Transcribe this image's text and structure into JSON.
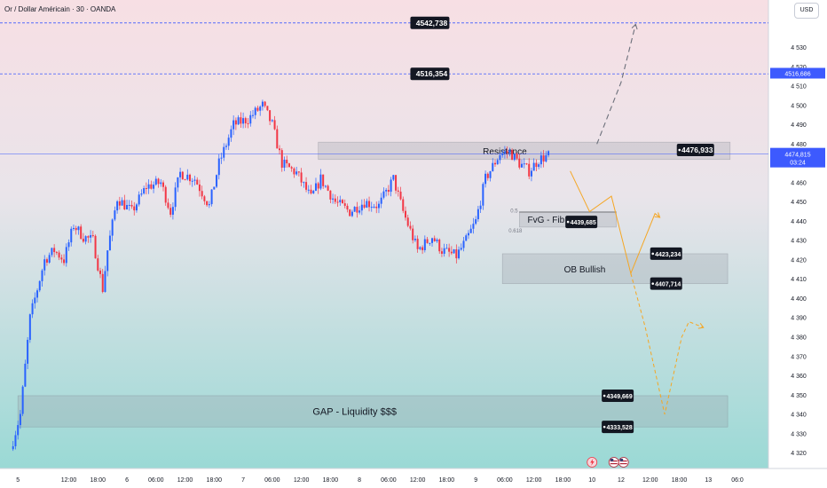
{
  "header": {
    "title": "Or / Dollar Américain · 30 · OANDA"
  },
  "currency_button": "USD",
  "colors": {
    "bull": "#2962ff",
    "bear": "#f23645",
    "projection": "#f5a623",
    "bg_top": "#f7dfe4",
    "bg_bottom": "#9ad9d5"
  },
  "chart_data": {
    "type": "candlestick",
    "instrument": "Or / Dollar Américain",
    "timeframe": "30",
    "source": "OANDA",
    "currency": "USD",
    "ylim": [
      4312,
      4550
    ],
    "y_ticks": [
      4320,
      4330,
      4340,
      4350,
      4360,
      4370,
      4380,
      4390,
      4400,
      4410,
      4420,
      4430,
      4440,
      4450,
      4460,
      4470,
      4480,
      4490,
      4500,
      4510,
      4520,
      4530
    ],
    "x_ticks": [
      {
        "label": "5",
        "i": 3
      },
      {
        "label": "12:00",
        "i": 24
      },
      {
        "label": "18:00",
        "i": 36
      },
      {
        "label": "6",
        "i": 48
      },
      {
        "label": "06:00",
        "i": 60
      },
      {
        "label": "12:00",
        "i": 72
      },
      {
        "label": "18:00",
        "i": 84
      },
      {
        "label": "7",
        "i": 96
      },
      {
        "label": "06:00",
        "i": 108
      },
      {
        "label": "12:00",
        "i": 120
      },
      {
        "label": "18:00",
        "i": 132
      },
      {
        "label": "8",
        "i": 144
      },
      {
        "label": "06:00",
        "i": 156
      },
      {
        "label": "12:00",
        "i": 168
      },
      {
        "label": "18:00",
        "i": 180
      },
      {
        "label": "9",
        "i": 192
      },
      {
        "label": "06:00",
        "i": 204
      },
      {
        "label": "12:00",
        "i": 216
      },
      {
        "label": "18:00",
        "i": 228
      },
      {
        "label": "10",
        "i": 240
      },
      {
        "label": "12",
        "i": 252
      },
      {
        "label": "12:00",
        "i": 264
      },
      {
        "label": "18:00",
        "i": 276
      },
      {
        "label": "13",
        "i": 288
      },
      {
        "label": "06:0",
        "i": 300
      }
    ],
    "series_anchors": [
      {
        "i": 0,
        "v": 4322
      },
      {
        "i": 4,
        "v": 4340
      },
      {
        "i": 8,
        "v": 4390
      },
      {
        "i": 14,
        "v": 4420
      },
      {
        "i": 18,
        "v": 4425
      },
      {
        "i": 22,
        "v": 4420
      },
      {
        "i": 26,
        "v": 4438
      },
      {
        "i": 30,
        "v": 4432
      },
      {
        "i": 34,
        "v": 4430
      },
      {
        "i": 38,
        "v": 4405
      },
      {
        "i": 40,
        "v": 4425
      },
      {
        "i": 44,
        "v": 4452
      },
      {
        "i": 50,
        "v": 4445
      },
      {
        "i": 56,
        "v": 4458
      },
      {
        "i": 62,
        "v": 4460
      },
      {
        "i": 66,
        "v": 4445
      },
      {
        "i": 70,
        "v": 4465
      },
      {
        "i": 76,
        "v": 4462
      },
      {
        "i": 82,
        "v": 4448
      },
      {
        "i": 86,
        "v": 4470
      },
      {
        "i": 92,
        "v": 4490
      },
      {
        "i": 98,
        "v": 4493
      },
      {
        "i": 104,
        "v": 4500
      },
      {
        "i": 108,
        "v": 4490
      },
      {
        "i": 112,
        "v": 4470
      },
      {
        "i": 118,
        "v": 4465
      },
      {
        "i": 124,
        "v": 4452
      },
      {
        "i": 128,
        "v": 4462
      },
      {
        "i": 134,
        "v": 4450
      },
      {
        "i": 140,
        "v": 4445
      },
      {
        "i": 146,
        "v": 4450
      },
      {
        "i": 152,
        "v": 4448
      },
      {
        "i": 158,
        "v": 4462
      },
      {
        "i": 162,
        "v": 4445
      },
      {
        "i": 168,
        "v": 4425
      },
      {
        "i": 174,
        "v": 4432
      },
      {
        "i": 178,
        "v": 4425
      },
      {
        "i": 184,
        "v": 4422
      },
      {
        "i": 188,
        "v": 4430
      },
      {
        "i": 192,
        "v": 4440
      },
      {
        "i": 196,
        "v": 4462
      },
      {
        "i": 202,
        "v": 4475
      },
      {
        "i": 206,
        "v": 4476
      },
      {
        "i": 210,
        "v": 4470
      },
      {
        "i": 214,
        "v": 4466
      },
      {
        "i": 218,
        "v": 4472
      },
      {
        "i": 222,
        "v": 4474
      }
    ],
    "levels": [
      {
        "value": 4542.738,
        "label": "4542,738",
        "style": "dashed"
      },
      {
        "value": 4516.354,
        "label": "4516,354",
        "style": "dashed"
      },
      {
        "value": 4476.933,
        "label": "4476,933"
      },
      {
        "value": 4439.685,
        "label": "4439,685"
      },
      {
        "value": 4423.234,
        "label": "4423,234"
      },
      {
        "value": 4407.714,
        "label": "4407,714"
      },
      {
        "value": 4349.669,
        "label": "4349,669"
      },
      {
        "value": 4333.528,
        "label": "4333,528"
      }
    ],
    "current_price": {
      "label": "4474,815",
      "countdown": "03:24"
    },
    "axis_tags": [
      {
        "label": "4516,686"
      }
    ],
    "zones": [
      {
        "name": "Resistance",
        "top": 4481,
        "bottom": 4472,
        "i_start": 127,
        "i_end": 297
      },
      {
        "name": "FvG - Fib",
        "top": 4445,
        "bottom": 4437,
        "i_start": 210,
        "i_end": 250,
        "fib_labels": [
          "0.5",
          "0.618"
        ]
      },
      {
        "name": "OB Bullish",
        "top": 4423.2,
        "bottom": 4407.7,
        "i_start": 203,
        "i_end": 296
      },
      {
        "name": "GAP - Liquidity $$$",
        "top": 4349.7,
        "bottom": 4333.5,
        "i_start": 3,
        "i_end": 296
      }
    ],
    "projections": [
      {
        "kind": "bullish",
        "style": "dashed",
        "points": [
          [
            242,
            4480
          ],
          [
            252,
            4512
          ],
          [
            258,
            4542
          ]
        ]
      },
      {
        "kind": "main",
        "style": "solid",
        "points": [
          [
            231,
            4466
          ],
          [
            239,
            4445
          ],
          [
            248,
            4453
          ],
          [
            256,
            4413
          ],
          [
            266,
            4444
          ],
          [
            268,
            4442
          ]
        ]
      },
      {
        "kind": "extended",
        "style": "dashed",
        "points": [
          [
            256,
            4413
          ],
          [
            262,
            4385
          ],
          [
            270,
            4340
          ],
          [
            277,
            4380
          ],
          [
            280,
            4388
          ],
          [
            286,
            4385
          ]
        ]
      }
    ],
    "event_markers": [
      {
        "icon": "lightning-icon",
        "i": 240
      },
      {
        "icon": "us-flag-icon",
        "i": 249
      },
      {
        "icon": "us-flag-icon",
        "i": 253
      }
    ]
  }
}
